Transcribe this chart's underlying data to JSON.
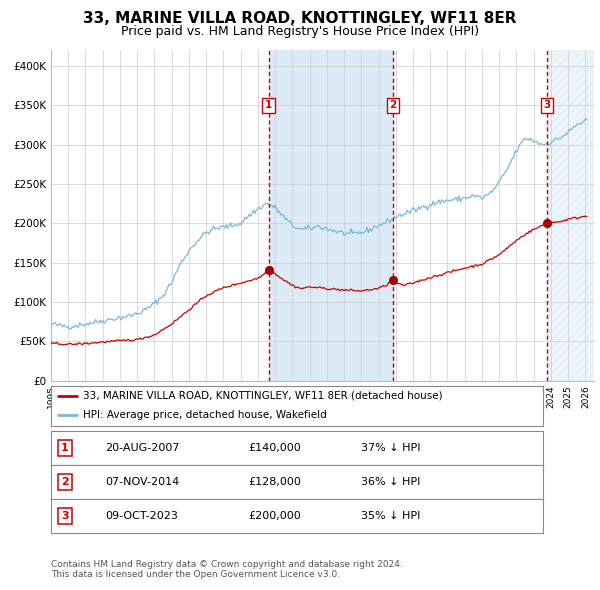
{
  "title": "33, MARINE VILLA ROAD, KNOTTINGLEY, WF11 8ER",
  "subtitle": "Price paid vs. HM Land Registry's House Price Index (HPI)",
  "ylim": [
    0,
    420000
  ],
  "yticks": [
    0,
    50000,
    100000,
    150000,
    200000,
    250000,
    300000,
    350000,
    400000
  ],
  "ytick_labels": [
    "£0",
    "£50K",
    "£100K",
    "£150K",
    "£200K",
    "£250K",
    "£300K",
    "£350K",
    "£400K"
  ],
  "xlim_start": 1995.0,
  "xlim_end": 2026.5,
  "hpi_color": "#7ab8d9",
  "price_color": "#cc0000",
  "vline_color": "#cc0000",
  "shade_color": "#dceaf5",
  "hatch_color": "#c8daea",
  "transactions": [
    {
      "date": 2007.63,
      "price": 140000,
      "label": "1"
    },
    {
      "date": 2014.85,
      "price": 128000,
      "label": "2"
    },
    {
      "date": 2023.77,
      "price": 200000,
      "label": "3"
    }
  ],
  "legend_items": [
    {
      "label": "33, MARINE VILLA ROAD, KNOTTINGLEY, WF11 8ER (detached house)",
      "color": "#cc0000"
    },
    {
      "label": "HPI: Average price, detached house, Wakefield",
      "color": "#7ab8d9"
    }
  ],
  "table_rows": [
    {
      "num": "1",
      "date": "20-AUG-2007",
      "price": "£140,000",
      "hpi": "37% ↓ HPI"
    },
    {
      "num": "2",
      "date": "07-NOV-2014",
      "price": "£128,000",
      "hpi": "36% ↓ HPI"
    },
    {
      "num": "3",
      "date": "09-OCT-2023",
      "price": "£200,000",
      "hpi": "35% ↓ HPI"
    }
  ],
  "footnote": "Contains HM Land Registry data © Crown copyright and database right 2024.\nThis data is licensed under the Open Government Licence v3.0.",
  "background_color": "#ffffff",
  "grid_color": "#cccccc"
}
